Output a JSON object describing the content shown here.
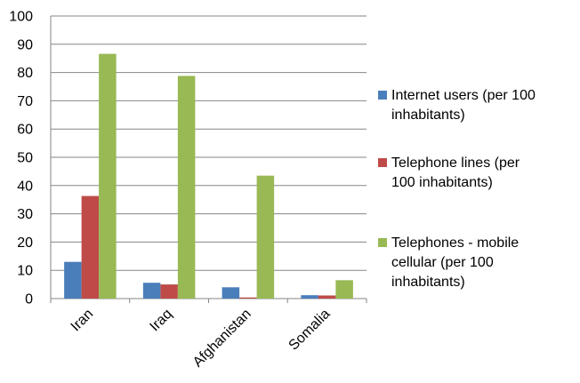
{
  "chart_data": {
    "type": "bar",
    "title": "",
    "xlabel": "",
    "ylabel": "",
    "categories": [
      "Iran",
      "Iraq",
      "Afghanistan",
      "Somalia"
    ],
    "ylim": [
      0,
      100
    ],
    "yticks": [
      0,
      10,
      20,
      30,
      40,
      50,
      60,
      70,
      80,
      90,
      100
    ],
    "grid": true,
    "legend_position": "right",
    "series": [
      {
        "name": "Internet users (per 100 inhabitants)",
        "legend_lines": [
          "Internet users (per 100",
          "inhabitants)"
        ],
        "color": "#4a7ebb",
        "values": [
          13,
          5.6,
          4,
          1.2
        ]
      },
      {
        "name": "Telephone lines (per 100 inhabitants)",
        "legend_lines": [
          "Telephone lines (per",
          "100 inhabitants)"
        ],
        "color": "#be4b48",
        "values": [
          36.3,
          5,
          0.4,
          1.1
        ]
      },
      {
        "name": "Telephones - mobile cellular (per 100 inhabitants)",
        "legend_lines": [
          "Telephones - mobile",
          "cellular (per 100",
          "inhabitants)"
        ],
        "color": "#98b954",
        "values": [
          86.6,
          78.8,
          43.5,
          6.5
        ]
      }
    ]
  }
}
